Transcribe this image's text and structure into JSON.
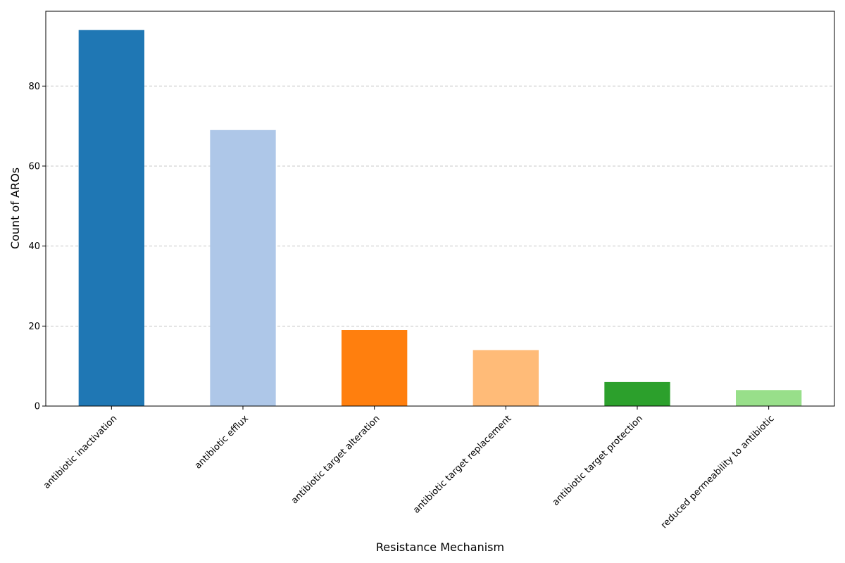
{
  "chart_data": {
    "type": "bar",
    "title": "",
    "xlabel": "Resistance Mechanism",
    "ylabel": "Count of AROs",
    "categories": [
      "antibiotic inactivation",
      "antibiotic efflux",
      "antibiotic target alteration",
      "antibiotic target replacement",
      "antibiotic target protection",
      "reduced permeability to antibiotic"
    ],
    "values": [
      94,
      69,
      19,
      14,
      6,
      4
    ],
    "colors": [
      "#1f77b4",
      "#aec7e8",
      "#ff7f0e",
      "#ffbb78",
      "#2ca02c",
      "#98df8a"
    ],
    "ylim": [
      0,
      98.7
    ],
    "yticks": [
      0,
      20,
      40,
      60,
      80
    ],
    "grid": {
      "axis": "y",
      "style": "dashed",
      "color": "#c8c8c8"
    },
    "legend": "none"
  }
}
